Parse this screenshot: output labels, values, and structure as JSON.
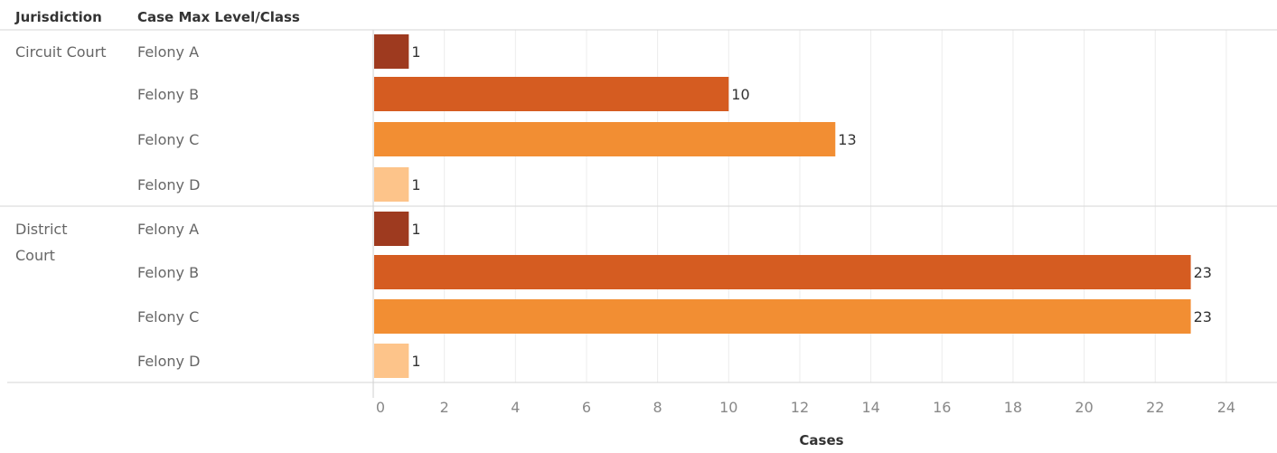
{
  "headers": {
    "jurisdiction": "Jurisdiction",
    "case_class": "Case Max Level/Class"
  },
  "chart_data": {
    "type": "bar",
    "orientation": "horizontal",
    "xlabel": "Cases",
    "xlim": [
      0,
      24
    ],
    "x_ticks": [
      "0",
      "2",
      "4",
      "6",
      "8",
      "10",
      "12",
      "14",
      "16",
      "18",
      "20",
      "22",
      "24"
    ],
    "grid": "vertical",
    "groups": [
      {
        "name_lines": [
          "Circuit Court"
        ],
        "categories": [
          "Felony A",
          "Felony B",
          "Felony C",
          "Felony D"
        ],
        "values": [
          1,
          10,
          13,
          1
        ]
      },
      {
        "name_lines": [
          "District",
          "Court"
        ],
        "categories": [
          "Felony A",
          "Felony B",
          "Felony C",
          "Felony D"
        ],
        "values": [
          1,
          23,
          23,
          1
        ]
      }
    ],
    "colors": {
      "Felony A": "#9e3a1f",
      "Felony B": "#d55c21",
      "Felony C": "#f28e33",
      "Felony D": "#fdc48a"
    }
  }
}
